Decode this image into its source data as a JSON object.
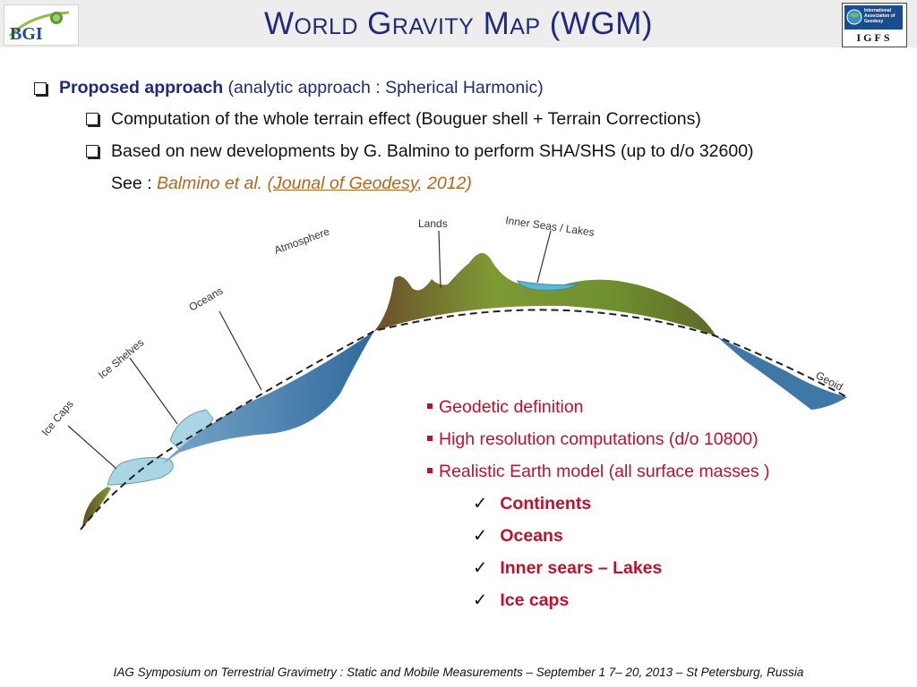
{
  "header": {
    "title": "World Gravity Map (WGM)",
    "logo_left_text": "BGI",
    "logo_right_text": "International Association of Geodesy",
    "logo_right_caption": "IGFS"
  },
  "bullets": {
    "main_bold": "Proposed approach",
    "main_rest": " (analytic approach : Spherical Harmonic)",
    "sub1": "Computation of the whole terrain effect (Bouguer shell + Terrain Corrections)",
    "sub2": "Based on new developments by G. Balmino to perform SHA/SHS (up to d/o 32600)",
    "see_prefix": "See : ",
    "ref_authors": "Balmino et al. (",
    "ref_journal": "Jounal of Geodesy",
    "ref_year": ", 2012",
    "ref_close": ")"
  },
  "diagram": {
    "labels": {
      "atmosphere": "Atmosphere",
      "lands": "Lands",
      "inner_seas": "Inner Seas / Lakes",
      "oceans": "Oceans",
      "ice_shelves": "Ice Shelves",
      "ice_caps": "Ice Caps",
      "geoid": "Geoid"
    },
    "colors": {
      "ocean": "#3f77a6",
      "ice": "#a9d6e2",
      "land_dark": "#6b5a28",
      "land_green": "#7f9a35"
    }
  },
  "features": {
    "items": [
      "Geodetic definition",
      "High resolution computations (d/o 10800)",
      "Realistic Earth model (all surface masses )"
    ],
    "checks": [
      "Continents",
      "Oceans",
      "Inner sears – Lakes",
      "Ice caps"
    ],
    "accent_color": "#c0102a"
  },
  "footer": {
    "text": "IAG Symposium on Terrestrial Gravimetry : Static and Mobile Measurements  – September 1 7– 20, 2013 – St Petersburg, Russia"
  }
}
